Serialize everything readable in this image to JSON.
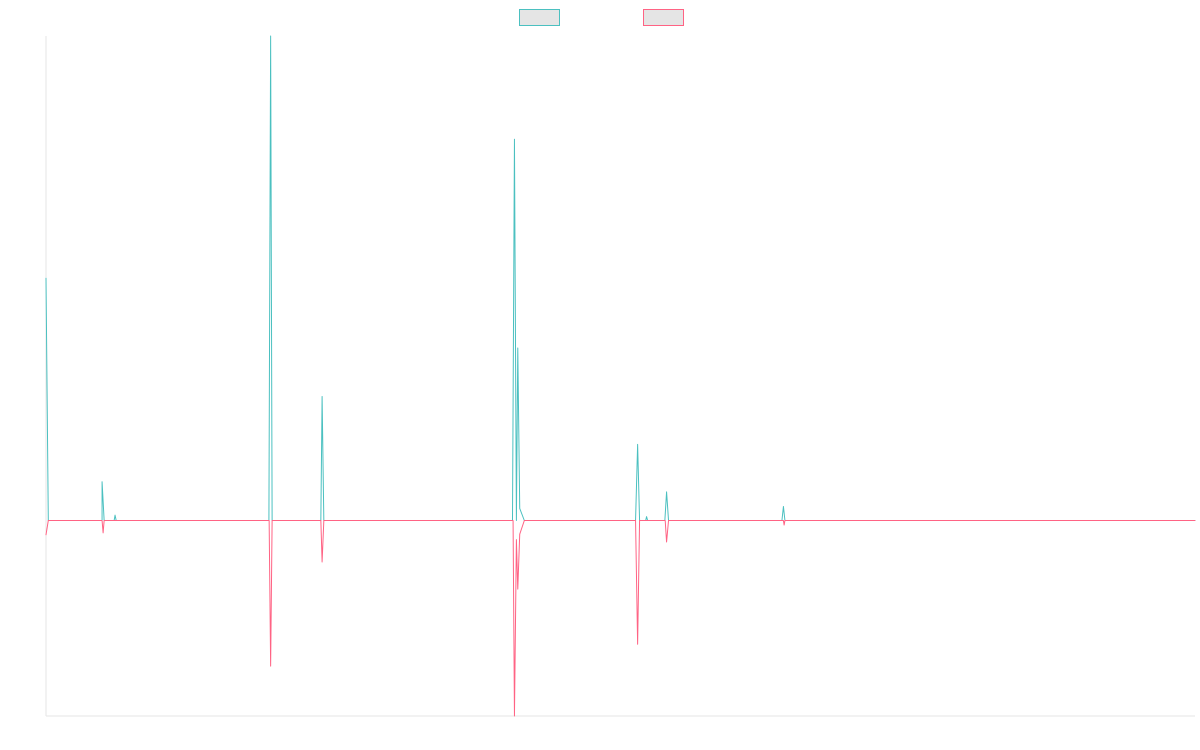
{
  "chart_data": {
    "type": "line",
    "title": "",
    "xlabel": "",
    "ylabel": "",
    "grid": false,
    "legend_position": "top-center",
    "x_range": [
      0,
      1
    ],
    "y_range": [
      -1,
      1
    ],
    "baseline": 0,
    "series": [
      {
        "color": "#4bc0c0",
        "legend_fill": "#e5e5e5",
        "points": [
          [
            0.0,
            0.5
          ],
          [
            0.002,
            0.0
          ],
          [
            0.0488,
            0.0
          ],
          [
            0.0488,
            0.08
          ],
          [
            0.0506,
            0.0
          ],
          [
            0.0593,
            0.0
          ],
          [
            0.0601,
            0.011
          ],
          [
            0.0611,
            0.0
          ],
          [
            0.194,
            0.0
          ],
          [
            0.1955,
            1.0
          ],
          [
            0.1968,
            0.0
          ],
          [
            0.2392,
            0.0
          ],
          [
            0.2403,
            0.256
          ],
          [
            0.2418,
            0.0
          ],
          [
            0.406,
            0.0
          ],
          [
            0.4077,
            0.787
          ],
          [
            0.4094,
            0.0
          ],
          [
            0.4106,
            0.356
          ],
          [
            0.4123,
            0.025
          ],
          [
            0.4163,
            0.0
          ],
          [
            0.5131,
            0.0
          ],
          [
            0.5149,
            0.157
          ],
          [
            0.5166,
            0.0
          ],
          [
            0.5219,
            0.0
          ],
          [
            0.5227,
            0.008
          ],
          [
            0.5236,
            0.0
          ],
          [
            0.5386,
            0.0
          ],
          [
            0.5401,
            0.059
          ],
          [
            0.5418,
            0.0
          ],
          [
            0.6405,
            0.0
          ],
          [
            0.6418,
            0.029
          ],
          [
            0.6431,
            0.0
          ],
          [
            1.0,
            0.0
          ]
        ]
      },
      {
        "color": "#ff6384",
        "legend_fill": "#e5e5e5",
        "points": [
          [
            0.0,
            -0.073
          ],
          [
            0.002,
            0.0
          ],
          [
            0.0488,
            0.0
          ],
          [
            0.0497,
            -0.063
          ],
          [
            0.0506,
            0.0
          ],
          [
            0.1942,
            0.0
          ],
          [
            0.1955,
            -0.745
          ],
          [
            0.1968,
            0.0
          ],
          [
            0.2392,
            0.0
          ],
          [
            0.2403,
            -0.212
          ],
          [
            0.2418,
            0.0
          ],
          [
            0.4065,
            0.0
          ],
          [
            0.4077,
            -1.0
          ],
          [
            0.4094,
            -0.098
          ],
          [
            0.4106,
            -0.351
          ],
          [
            0.4123,
            -0.07
          ],
          [
            0.4163,
            0.0
          ],
          [
            0.5131,
            0.0
          ],
          [
            0.5149,
            -0.633
          ],
          [
            0.5166,
            0.0
          ],
          [
            0.5389,
            0.0
          ],
          [
            0.5401,
            -0.11
          ],
          [
            0.5418,
            0.0
          ],
          [
            0.6418,
            0.0
          ],
          [
            0.6424,
            -0.023
          ],
          [
            0.6431,
            0.0
          ],
          [
            1.0,
            0.0
          ]
        ]
      }
    ]
  }
}
